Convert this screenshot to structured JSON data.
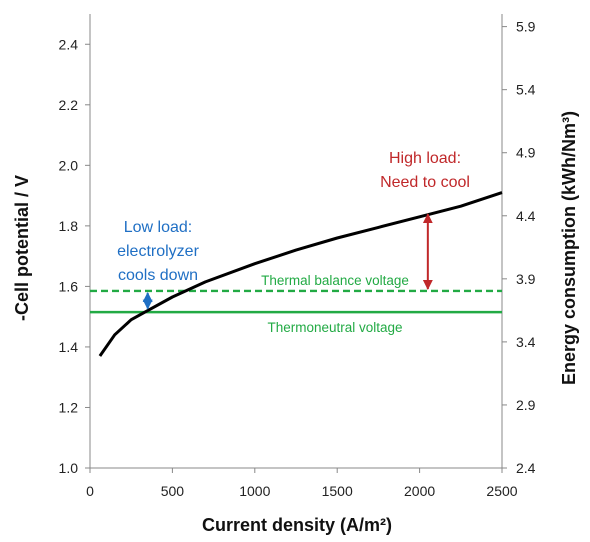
{
  "chart_data": {
    "type": "line",
    "xlabel": "Current density (A/m²)",
    "ylabel": "-Cell potential / V",
    "y2label": "Energy consumption (kWh/Nm³)",
    "xlim": [
      0,
      2500
    ],
    "ylim": [
      1.0,
      2.5
    ],
    "y2lim": [
      2.4,
      6.0
    ],
    "xticks": [
      "0",
      "500",
      "1000",
      "1500",
      "2000",
      "2500"
    ],
    "yticks": [
      "1.0",
      "1.2",
      "1.4",
      "1.6",
      "1.8",
      "2.0",
      "2.2",
      "2.4"
    ],
    "y2ticks": [
      "2.4",
      "2.9",
      "3.4",
      "3.9",
      "4.4",
      "4.9",
      "5.4",
      "5.9"
    ],
    "grid": false,
    "series": [
      {
        "color": "#000000",
        "x": [
          60,
          150,
          250,
          350,
          500,
          700,
          1000,
          1250,
          1500,
          1750,
          2000,
          2250,
          2500
        ],
        "y": [
          1.37,
          1.44,
          1.49,
          1.52,
          1.565,
          1.615,
          1.675,
          1.72,
          1.76,
          1.795,
          1.83,
          1.865,
          1.91
        ]
      }
    ],
    "reference_lines": [
      {
        "label": "Thermal balance voltage",
        "y": 1.585,
        "style": "dashed",
        "color": "#22aa44"
      },
      {
        "label": "Thermoneutral voltage",
        "y": 1.515,
        "style": "solid",
        "color": "#22aa44"
      }
    ],
    "annotations": [
      {
        "lines": [
          "High load:",
          "Need to cool"
        ],
        "color": "#c0282a",
        "arrow_x": 2050,
        "arrow_from": 1.585,
        "arrow_to": 1.845
      },
      {
        "lines": [
          "Low load:",
          "electrolyzer",
          "cools down"
        ],
        "color": "#1f6fc4",
        "arrow_x": 350,
        "arrow_from": 1.52,
        "arrow_to": 1.585
      }
    ]
  }
}
